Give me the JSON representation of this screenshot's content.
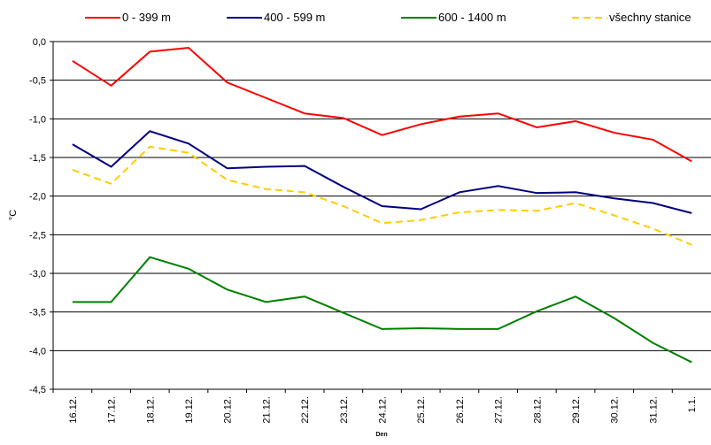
{
  "chart_data": {
    "type": "line",
    "x_label": "Den",
    "y_label": "°C",
    "categories": [
      "16.12.",
      "17.12.",
      "18.12.",
      "19.12.",
      "20.12.",
      "21.12.",
      "22.12.",
      "23.12.",
      "24.12.",
      "25.12.",
      "26.12.",
      "27.12.",
      "28.12.",
      "29.12.",
      "30.12.",
      "31.12.",
      "1.1."
    ],
    "series": [
      {
        "name": "0 - 399 m",
        "color": "#ff0000",
        "values": [
          -0.25,
          -0.57,
          -0.13,
          -0.08,
          -0.53,
          -0.73,
          -0.93,
          -0.99,
          -1.21,
          -1.07,
          -0.97,
          -0.93,
          -1.11,
          -1.03,
          -1.18,
          -1.27,
          -1.55
        ]
      },
      {
        "name": "400 - 599 m",
        "color": "#000080",
        "values": [
          -1.33,
          -1.62,
          -1.16,
          -1.32,
          -1.64,
          -1.62,
          -1.61,
          -1.88,
          -2.13,
          -2.17,
          -1.95,
          -1.87,
          -1.96,
          -1.95,
          -2.03,
          -2.09,
          -2.22
        ]
      },
      {
        "name": "600 - 1400 m",
        "color": "#008000",
        "values": [
          -3.37,
          -3.37,
          -2.79,
          -2.94,
          -3.21,
          -3.37,
          -3.3,
          -3.51,
          -3.72,
          -3.71,
          -3.72,
          -3.72,
          -3.49,
          -3.3,
          -3.58,
          -3.9,
          -4.15
        ]
      },
      {
        "name": "všechny stanice",
        "color": "#ffcc00",
        "dashed": true,
        "values": [
          -1.66,
          -1.84,
          -1.36,
          -1.44,
          -1.79,
          -1.91,
          -1.95,
          -2.13,
          -2.35,
          -2.31,
          -2.21,
          -2.18,
          -2.19,
          -2.09,
          -2.25,
          -2.42,
          -2.63
        ]
      }
    ],
    "ylim": [
      -4.5,
      0
    ],
    "yticks": [
      {
        "value": 0,
        "label": "0,0"
      },
      {
        "value": -0.5,
        "label": "-0,5"
      },
      {
        "value": -1,
        "label": "-1,0"
      },
      {
        "value": -1.5,
        "label": "-1,5"
      },
      {
        "value": -2,
        "label": "-2,0"
      },
      {
        "value": -2.5,
        "label": "-2,5"
      },
      {
        "value": -3,
        "label": "-3,0"
      },
      {
        "value": -3.5,
        "label": "-3,5"
      },
      {
        "value": -4,
        "label": "-4,0"
      },
      {
        "value": -4.5,
        "label": "-4,5"
      }
    ],
    "grid": true,
    "legend": "top"
  }
}
